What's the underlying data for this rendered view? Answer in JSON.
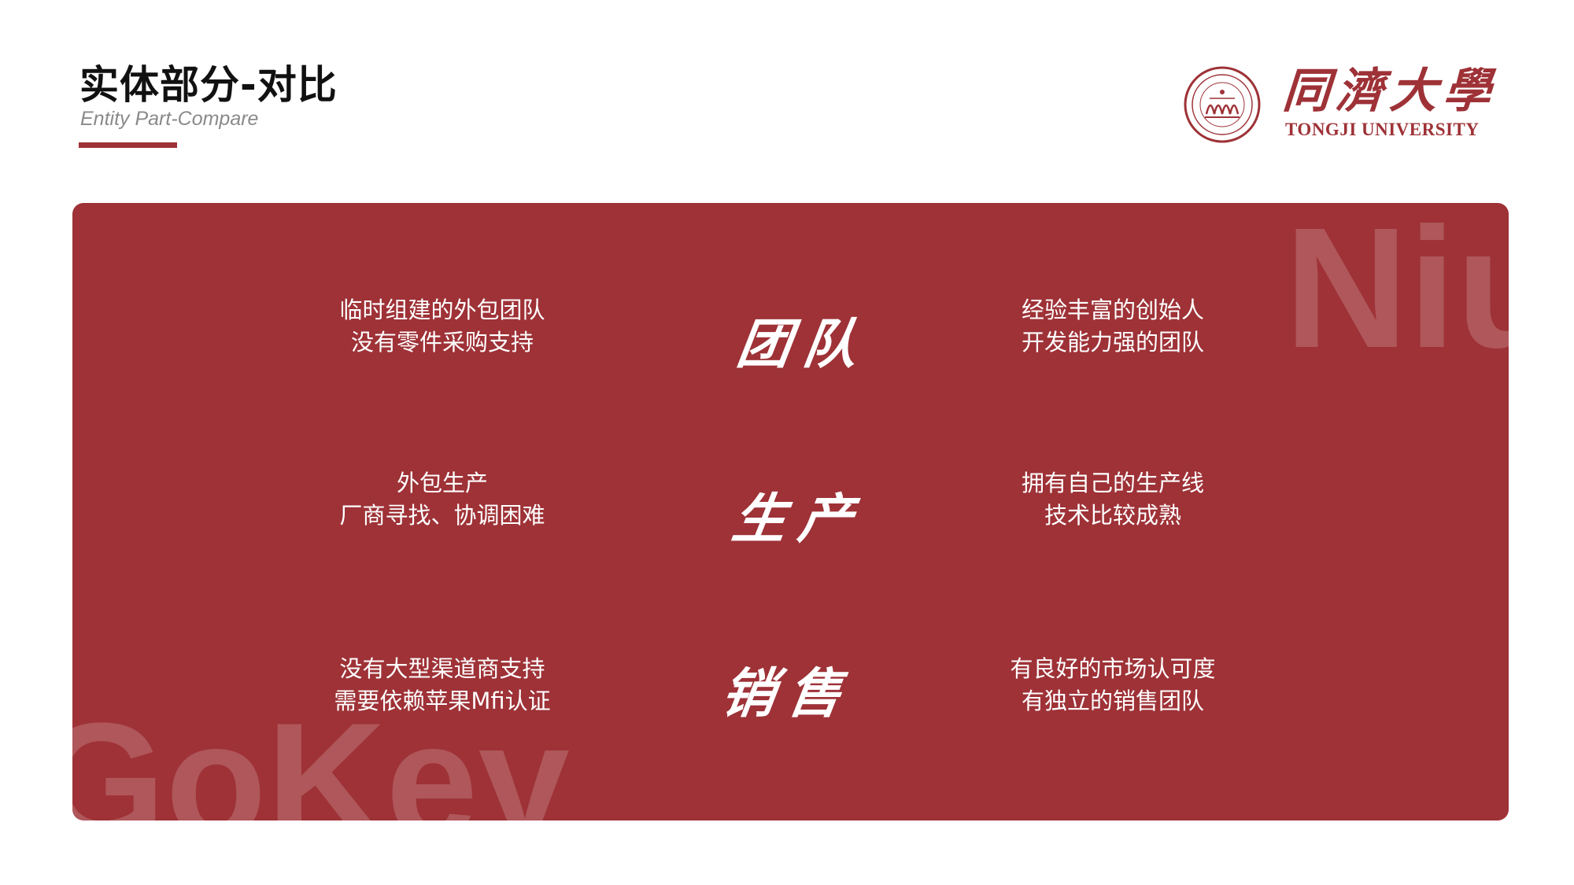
{
  "header": {
    "title": "实体部分-对比",
    "subtitle": "Entity Part-Compare"
  },
  "logo": {
    "name_cn": "同濟大學",
    "name_en": "TONGJI UNIVERSITY",
    "seal_icon": "tongji-seal-icon"
  },
  "panel": {
    "watermark_top": "Niu",
    "watermark_bottom": "GoKey",
    "rows": [
      {
        "label": "团队",
        "left": [
          "临时组建的外包团队",
          "没有零件采购支持"
        ],
        "right": [
          "经验丰富的创始人",
          "开发能力强的团队"
        ]
      },
      {
        "label": "生产",
        "left": [
          "外包生产",
          "厂商寻找、协调困难"
        ],
        "right": [
          "拥有自己的生产线",
          "技术比较成熟"
        ]
      },
      {
        "label": "销售",
        "left": [
          "没有大型渠道商支持",
          "需要依赖苹果Mfi认证"
        ],
        "right": [
          "有良好的市场认可度",
          "有独立的销售团队"
        ]
      }
    ]
  },
  "colors": {
    "accent": "#9e3237",
    "text_dark": "#111111",
    "subtitle_gray": "#8a8a8a"
  }
}
